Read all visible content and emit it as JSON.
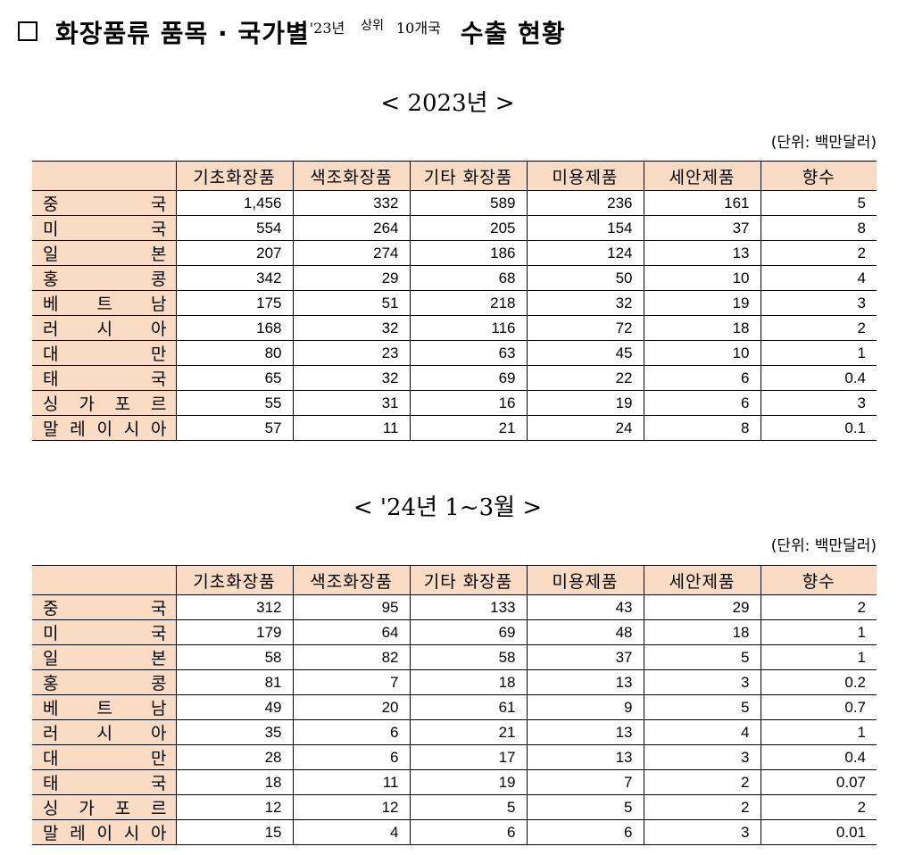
{
  "header": {
    "title_a": "화장품류 품목 · 국가별",
    "title_year": "'23년",
    "title_top": "상위",
    "title_count": "10개국",
    "title_b": "수출 현황"
  },
  "unit_label": "(단위: 백만달러)",
  "columns": [
    "기초화장품",
    "색조화장품",
    "기타 화장품",
    "미용제품",
    "세안제품",
    "향수"
  ],
  "tables": [
    {
      "subtitle": "< 2023년 >",
      "rows": [
        {
          "country": "중국",
          "values": [
            "1,456",
            "332",
            "589",
            "236",
            "161",
            "5"
          ]
        },
        {
          "country": "미국",
          "values": [
            "554",
            "264",
            "205",
            "154",
            "37",
            "8"
          ]
        },
        {
          "country": "일본",
          "values": [
            "207",
            "274",
            "186",
            "124",
            "13",
            "2"
          ]
        },
        {
          "country": "홍콩",
          "values": [
            "342",
            "29",
            "68",
            "50",
            "10",
            "4"
          ]
        },
        {
          "country": "베트남",
          "values": [
            "175",
            "51",
            "218",
            "32",
            "19",
            "3"
          ]
        },
        {
          "country": "러시아",
          "values": [
            "168",
            "32",
            "116",
            "72",
            "18",
            "2"
          ]
        },
        {
          "country": "대만",
          "values": [
            "80",
            "23",
            "63",
            "45",
            "10",
            "1"
          ]
        },
        {
          "country": "태국",
          "values": [
            "65",
            "32",
            "69",
            "22",
            "6",
            "0.4"
          ]
        },
        {
          "country": "싱가포르",
          "values": [
            "55",
            "31",
            "16",
            "19",
            "6",
            "3"
          ]
        },
        {
          "country": "말레이시아",
          "values": [
            "57",
            "11",
            "21",
            "24",
            "8",
            "0.1"
          ]
        }
      ]
    },
    {
      "subtitle": "< '24년 1~3월 >",
      "rows": [
        {
          "country": "중국",
          "values": [
            "312",
            "95",
            "133",
            "43",
            "29",
            "2"
          ]
        },
        {
          "country": "미국",
          "values": [
            "179",
            "64",
            "69",
            "48",
            "18",
            "1"
          ]
        },
        {
          "country": "일본",
          "values": [
            "58",
            "82",
            "58",
            "37",
            "5",
            "1"
          ]
        },
        {
          "country": "홍콩",
          "values": [
            "81",
            "7",
            "18",
            "13",
            "3",
            "0.2"
          ]
        },
        {
          "country": "베트남",
          "values": [
            "49",
            "20",
            "61",
            "9",
            "5",
            "0.7"
          ]
        },
        {
          "country": "러시아",
          "values": [
            "35",
            "6",
            "21",
            "13",
            "4",
            "1"
          ]
        },
        {
          "country": "대만",
          "values": [
            "28",
            "6",
            "17",
            "13",
            "3",
            "0.4"
          ]
        },
        {
          "country": "태국",
          "values": [
            "18",
            "11",
            "19",
            "7",
            "2",
            "0.07"
          ]
        },
        {
          "country": "싱가포르",
          "values": [
            "12",
            "12",
            "5",
            "5",
            "2",
            "2"
          ]
        },
        {
          "country": "말레이시아",
          "values": [
            "15",
            "4",
            "6",
            "6",
            "3",
            "0.01"
          ]
        }
      ]
    }
  ]
}
